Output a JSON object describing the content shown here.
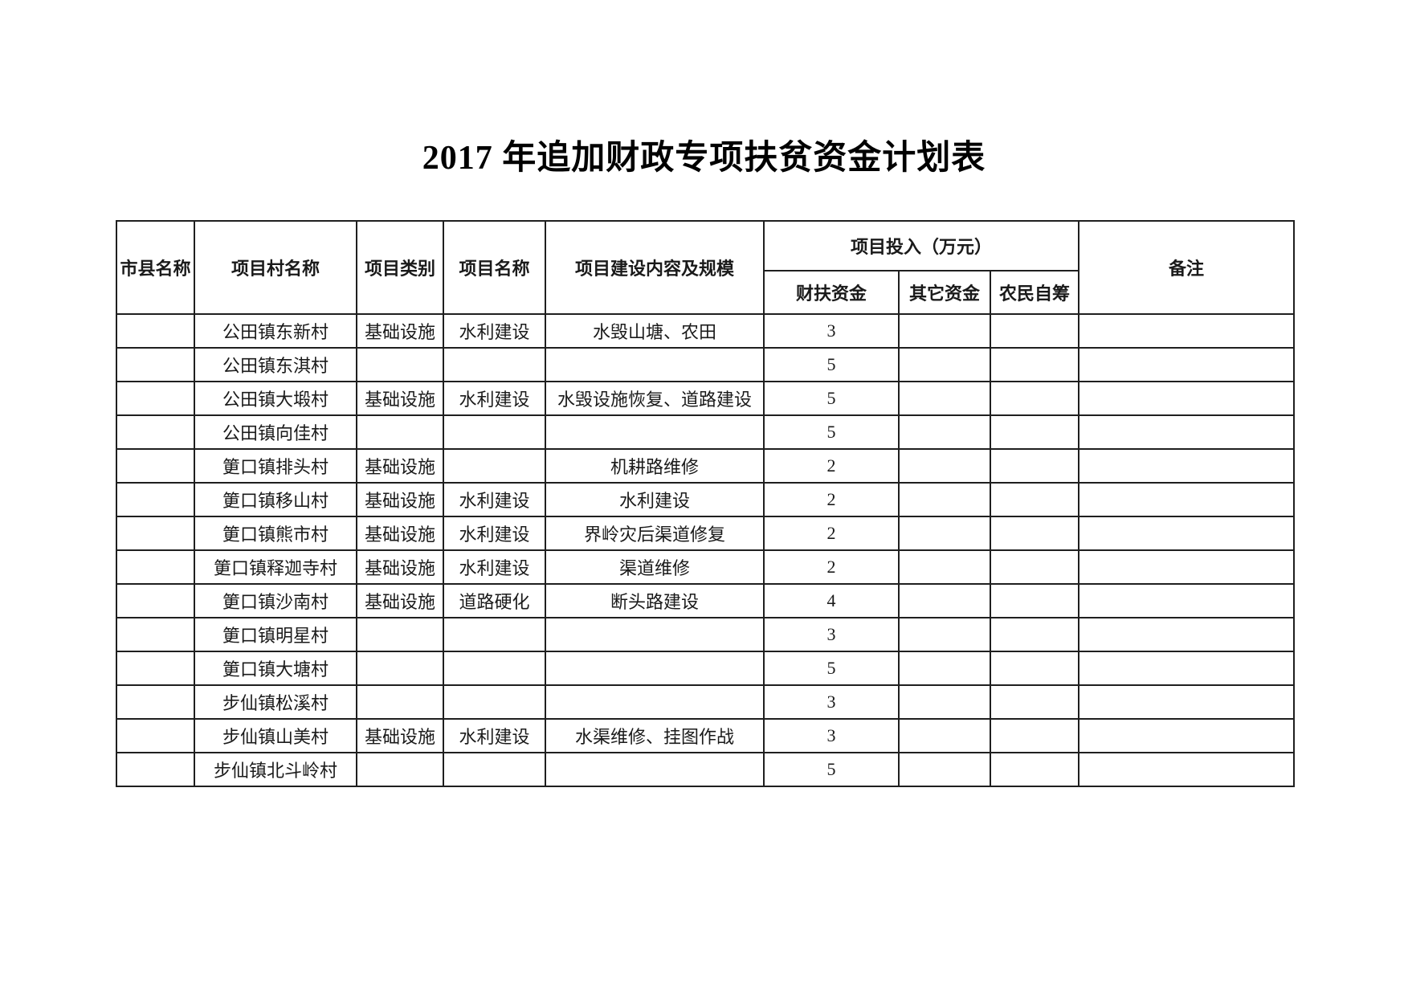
{
  "page": {
    "title": "2017 年追加财政专项扶贫资金计划表"
  },
  "table": {
    "headers": {
      "city": "市县名称",
      "village": "项目村名称",
      "category": "项目类别",
      "project": "项目名称",
      "content": "项目建设内容及规模",
      "invest_group": "项目投入（万元）",
      "invest_fupin": "财扶资金",
      "invest_other": "其它资金",
      "invest_farmer": "农民自筹",
      "remark": "备注"
    },
    "rows": [
      {
        "city": "",
        "village": "公田镇东新村",
        "category": "基础设施",
        "project": "水利建设",
        "content": "水毁山塘、农田",
        "fupin": "3",
        "other": "",
        "farmer": "",
        "remark": ""
      },
      {
        "city": "",
        "village": "公田镇东淇村",
        "category": "",
        "project": "",
        "content": "",
        "fupin": "5",
        "other": "",
        "farmer": "",
        "remark": ""
      },
      {
        "city": "",
        "village": "公田镇大塅村",
        "category": "基础设施",
        "project": "水利建设",
        "content": "水毁设施恢复、道路建设",
        "fupin": "5",
        "other": "",
        "farmer": "",
        "remark": ""
      },
      {
        "city": "",
        "village": "公田镇向佳村",
        "category": "",
        "project": "",
        "content": "",
        "fupin": "5",
        "other": "",
        "farmer": "",
        "remark": ""
      },
      {
        "city": "",
        "village": "筻口镇排头村",
        "category": "基础设施",
        "project": "",
        "content": "机耕路维修",
        "fupin": "2",
        "other": "",
        "farmer": "",
        "remark": ""
      },
      {
        "city": "",
        "village": "筻口镇移山村",
        "category": "基础设施",
        "project": "水利建设",
        "content": "水利建设",
        "fupin": "2",
        "other": "",
        "farmer": "",
        "remark": ""
      },
      {
        "city": "",
        "village": "筻口镇熊市村",
        "category": "基础设施",
        "project": "水利建设",
        "content": "界岭灾后渠道修复",
        "fupin": "2",
        "other": "",
        "farmer": "",
        "remark": ""
      },
      {
        "city": "",
        "village": "筻口镇释迦寺村",
        "category": "基础设施",
        "project": "水利建设",
        "content": "渠道维修",
        "fupin": "2",
        "other": "",
        "farmer": "",
        "remark": ""
      },
      {
        "city": "",
        "village": "筻口镇沙南村",
        "category": "基础设施",
        "project": "道路硬化",
        "content": "断头路建设",
        "fupin": "4",
        "other": "",
        "farmer": "",
        "remark": ""
      },
      {
        "city": "",
        "village": "筻口镇明星村",
        "category": "",
        "project": "",
        "content": "",
        "fupin": "3",
        "other": "",
        "farmer": "",
        "remark": ""
      },
      {
        "city": "",
        "village": "筻口镇大塘村",
        "category": "",
        "project": "",
        "content": "",
        "fupin": "5",
        "other": "",
        "farmer": "",
        "remark": ""
      },
      {
        "city": "",
        "village": "步仙镇松溪村",
        "category": "",
        "project": "",
        "content": "",
        "fupin": "3",
        "other": "",
        "farmer": "",
        "remark": ""
      },
      {
        "city": "",
        "village": "步仙镇山美村",
        "category": "基础设施",
        "project": "水利建设",
        "content": "水渠维修、挂图作战",
        "fupin": "3",
        "other": "",
        "farmer": "",
        "remark": ""
      },
      {
        "city": "",
        "village": "步仙镇北斗岭村",
        "category": "",
        "project": "",
        "content": "",
        "fupin": "5",
        "other": "",
        "farmer": "",
        "remark": ""
      }
    ]
  }
}
